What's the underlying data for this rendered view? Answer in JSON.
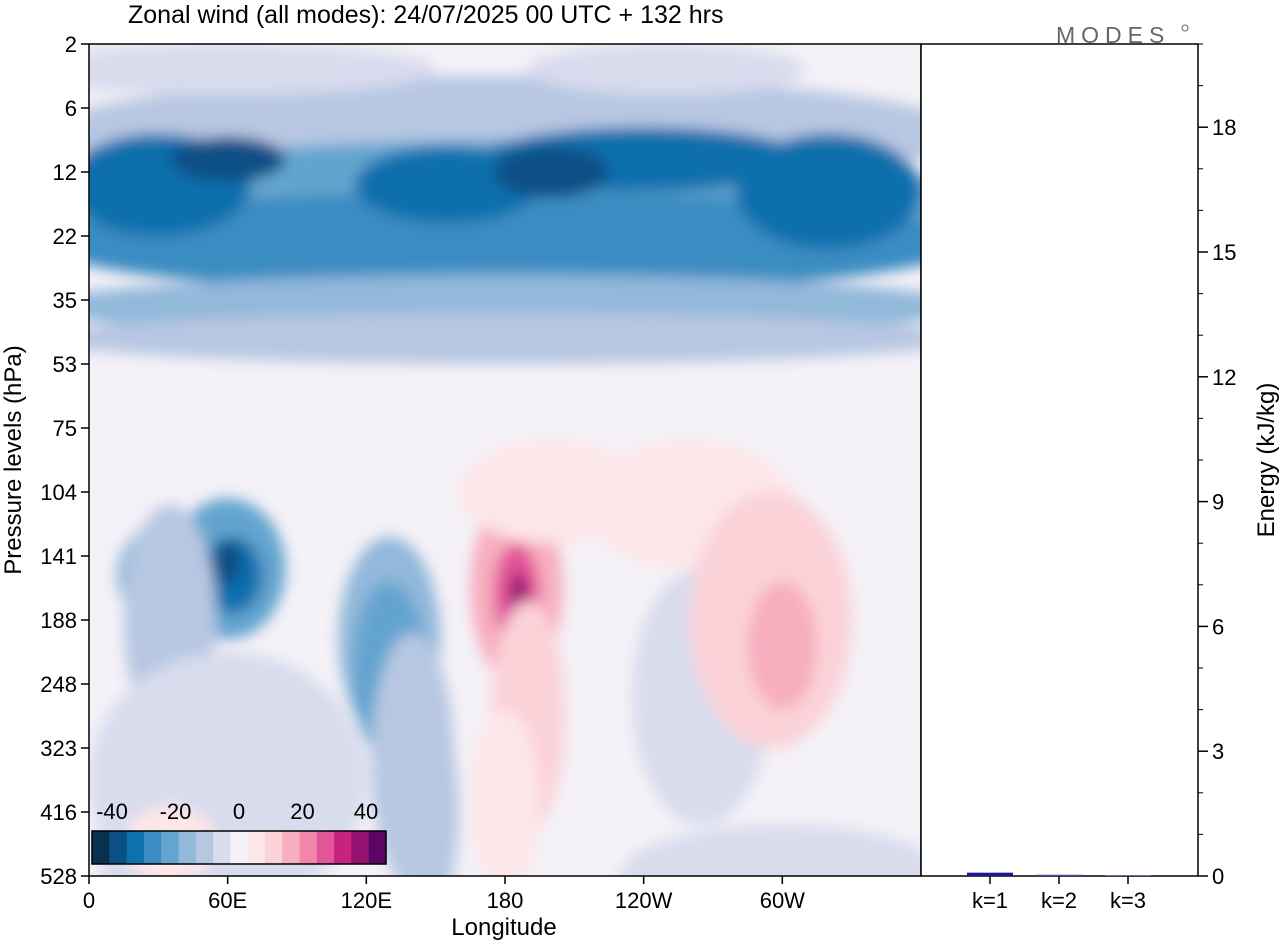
{
  "chart_data": {
    "type": "contour",
    "title": "Zonal wind (all modes):  24/07/2025  00 UTC  + 132 hrs",
    "logo": "MODES",
    "xlabel": "Longitude",
    "ylabel": "Pressure levels (hPa)",
    "x_ticks": [
      "0",
      "60E",
      "120E",
      "180",
      "120W",
      "60W"
    ],
    "x_tick_lons": [
      0,
      60,
      120,
      180,
      240,
      300
    ],
    "x_range": [
      0,
      360
    ],
    "pressure_levels": [
      "2",
      "6",
      "12",
      "22",
      "35",
      "53",
      "75",
      "104",
      "141",
      "188",
      "248",
      "323",
      "416",
      "528"
    ],
    "colorbar": {
      "tick_labels": [
        "-40",
        "-20",
        "0",
        "20",
        "40"
      ],
      "levels": [
        -40,
        -35,
        -30,
        -25,
        -20,
        -15,
        -10,
        -5,
        0,
        5,
        10,
        15,
        20,
        25,
        30,
        35,
        40
      ],
      "colors": [
        "#08304f",
        "#0a4f86",
        "#0e70ad",
        "#3a8cc2",
        "#64a4cf",
        "#92b8da",
        "#b7c7e2",
        "#d8dced",
        "#f4f1f7",
        "#fde6e8",
        "#fbd2d8",
        "#f7aebf",
        "#f185aa",
        "#e25599",
        "#c5237f",
        "#951070",
        "#5b0565"
      ]
    },
    "right_panel": {
      "ylabel": "Energy (kJ/kg)",
      "y_ticks": [
        0,
        3,
        6,
        9,
        12,
        15,
        18
      ],
      "ylim": [
        0,
        20
      ],
      "categories": [
        "k=1",
        "k=2",
        "k=3"
      ],
      "values": [
        0.08,
        0.03,
        0.02
      ],
      "bar_colors": [
        "#1a1a8c",
        "#4a4a99",
        "#6a6aaa"
      ]
    }
  }
}
